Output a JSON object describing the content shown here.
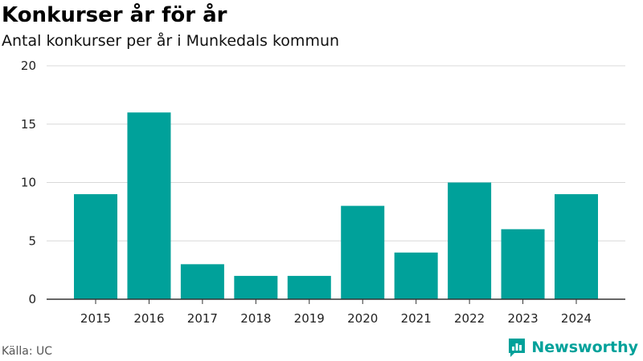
{
  "header": {
    "title": "Konkurser år för år",
    "subtitle": "Antal konkurser per år i Munkedals kommun"
  },
  "footer": {
    "source": "Källa: UC",
    "brand": "Newsworthy",
    "brand_icon": "newsworthy-logo-icon"
  },
  "colors": {
    "bar": "#00a19a",
    "grid": "#d9d9d9",
    "axis": "#333333",
    "brand": "#00a19a"
  },
  "chart_data": {
    "type": "bar",
    "categories": [
      "2015",
      "2016",
      "2017",
      "2018",
      "2019",
      "2020",
      "2021",
      "2022",
      "2023",
      "2024"
    ],
    "values": [
      9,
      16,
      3,
      2,
      2,
      8,
      4,
      10,
      6,
      9
    ],
    "ylim": [
      0,
      20
    ],
    "yticks": [
      0,
      5,
      10,
      15,
      20
    ],
    "xlabel": "",
    "ylabel": "",
    "grid": true,
    "legend": "none"
  }
}
